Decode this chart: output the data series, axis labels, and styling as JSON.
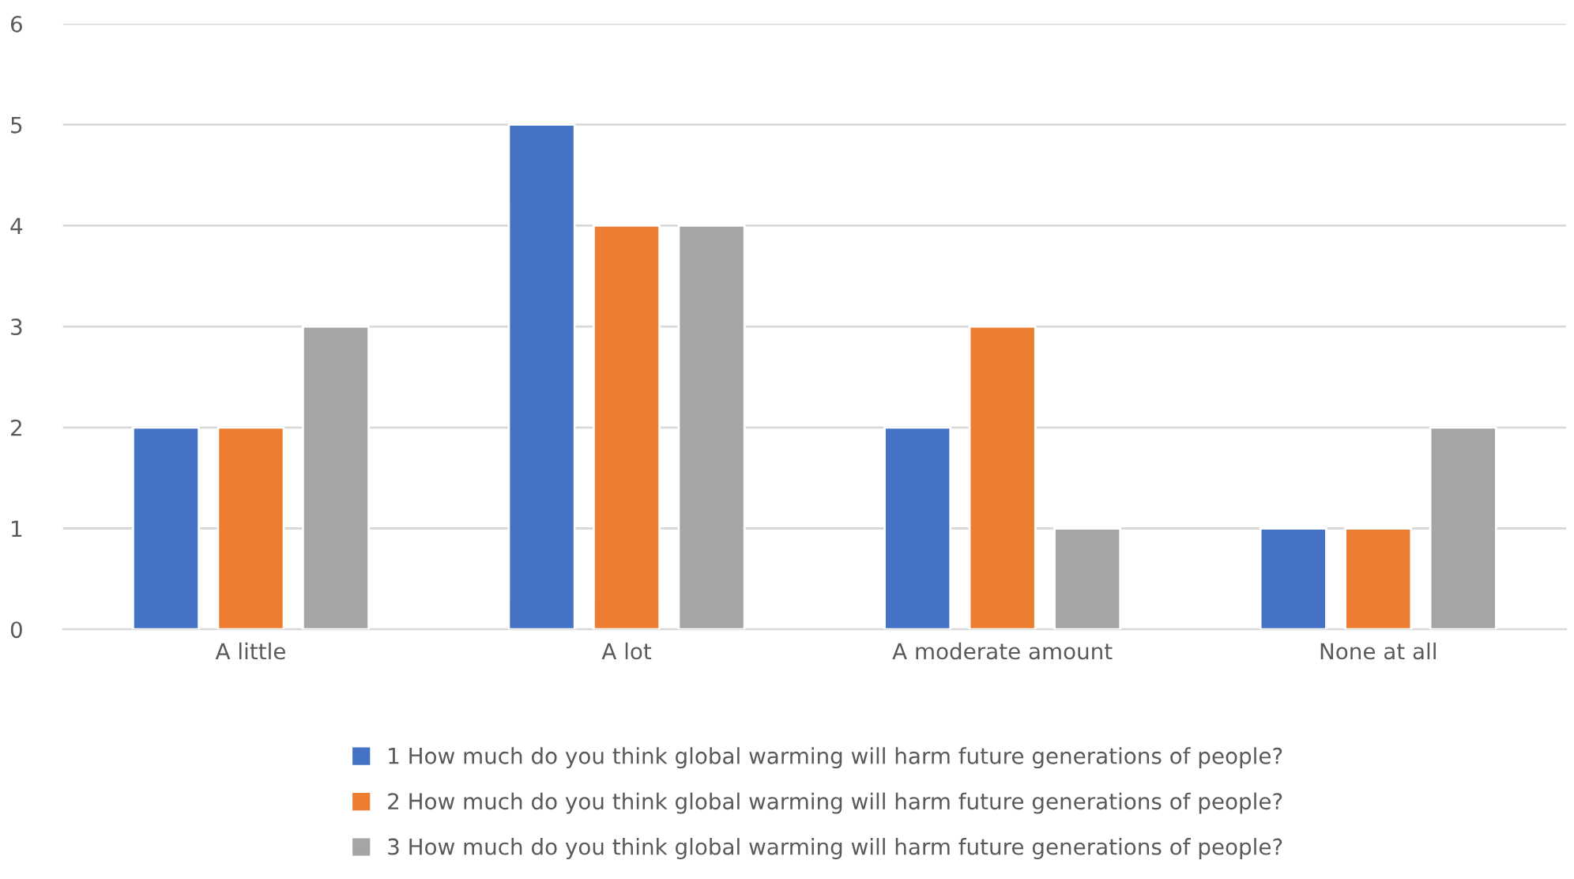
{
  "chart_data": {
    "type": "bar",
    "categories": [
      "A little",
      "A lot",
      "A moderate amount",
      "None at all"
    ],
    "series": [
      {
        "name": "1 How much do you think global warming will harm future generations of people?",
        "color": "#4472c4",
        "values": [
          2,
          5,
          2,
          1
        ]
      },
      {
        "name": "2 How much do you think global warming will harm future generations of people?",
        "color": "#ed7d31",
        "values": [
          2,
          4,
          3,
          1
        ]
      },
      {
        "name": "3 How much do you think global warming will harm future generations of people?",
        "color": "#a5a5a5",
        "values": [
          3,
          4,
          1,
          2
        ]
      }
    ],
    "ylim": [
      0,
      6
    ],
    "yticks": [
      0,
      1,
      2,
      3,
      4,
      5,
      6
    ],
    "grid": "y",
    "legend": "bottom"
  }
}
